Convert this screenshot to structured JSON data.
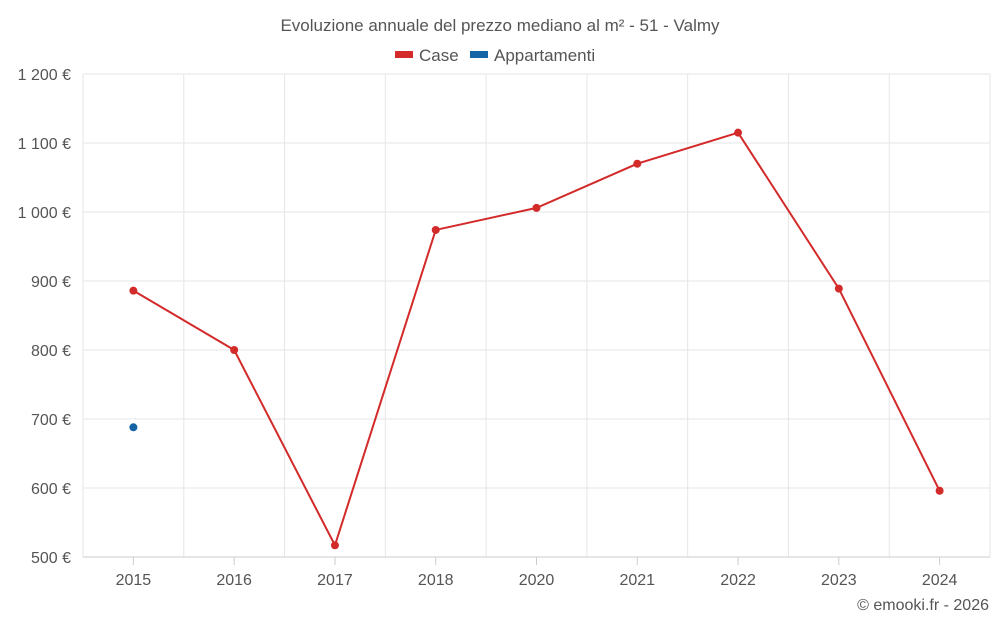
{
  "chart_data": {
    "type": "line",
    "title": "Evoluzione annuale del prezzo mediano al m² - 51 - Valmy",
    "categories": [
      "2015",
      "2016",
      "2017",
      "2018",
      "2020",
      "2021",
      "2022",
      "2023",
      "2024"
    ],
    "series": [
      {
        "name": "Case",
        "color": "#d32a2a",
        "values": [
          886,
          800,
          517,
          974,
          1006,
          1070,
          1115,
          889,
          596
        ]
      },
      {
        "name": "Appartamenti",
        "color": "#1565a6",
        "values": [
          688,
          null,
          null,
          null,
          null,
          null,
          null,
          null,
          null
        ]
      }
    ],
    "ylim": [
      500,
      1200
    ],
    "yticks": [
      500,
      600,
      700,
      800,
      900,
      1000,
      1100,
      1200
    ],
    "ytick_labels": [
      "500 €",
      "600 €",
      "700 €",
      "800 €",
      "900 €",
      "1 000 €",
      "1 100 €",
      "1 200 €"
    ],
    "xlabel": "",
    "ylabel": "",
    "grid": true,
    "legend_position": "top-center"
  },
  "credit": "© emooki.fr - 2026"
}
